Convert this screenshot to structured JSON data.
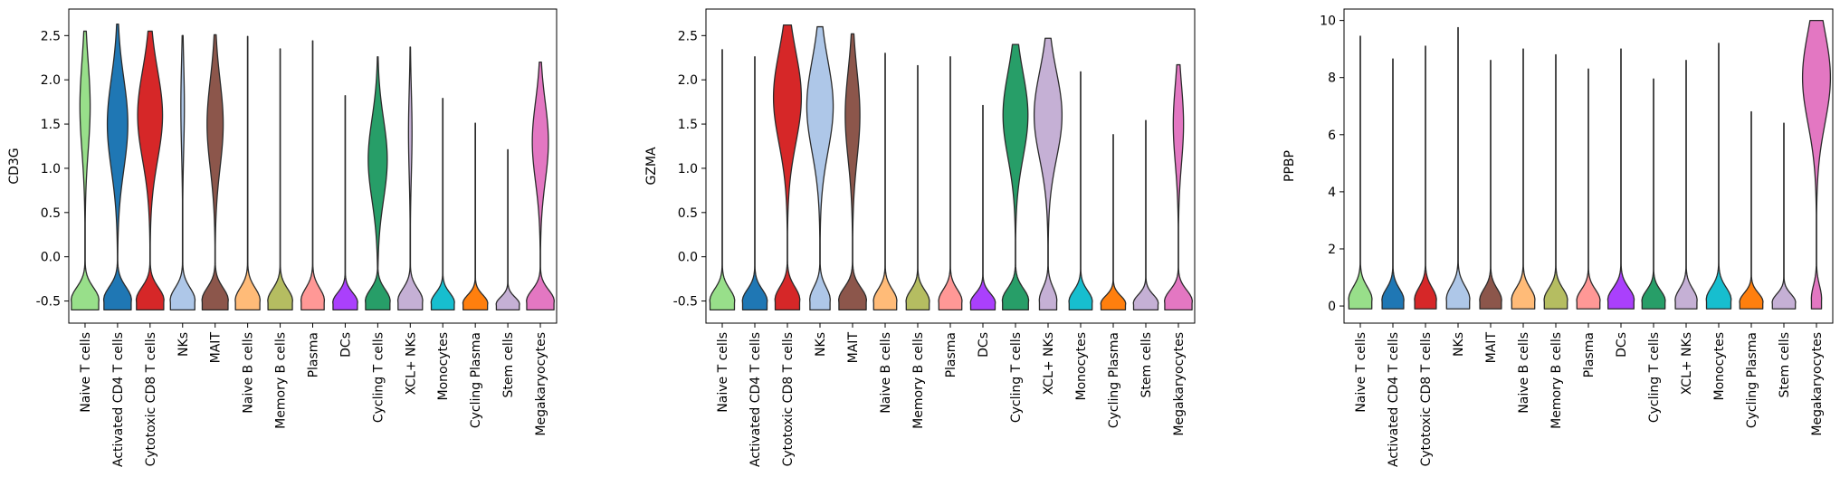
{
  "chart_data": [
    {
      "type": "violin",
      "ylabel": "CD3G",
      "ylim": [
        -0.75,
        2.8
      ],
      "yticks": [
        "-0.5",
        "0.0",
        "0.5",
        "1.0",
        "1.5",
        "2.0",
        "2.5"
      ],
      "ytick_values": [
        -0.5,
        0.0,
        0.5,
        1.0,
        1.5,
        2.0,
        2.5
      ],
      "categories": [
        "Naive T cells",
        "Activated CD4 T cells",
        "Cytotoxic CD8 T cells",
        "NKs",
        "MAIT",
        "Naive B cells",
        "Memory B cells",
        "Plasma",
        "DCs",
        "Cycling T cells",
        "XCL+ NKs",
        "Monocytes",
        "Cycling Plasma",
        "Stem cells",
        "Megakaryocytes"
      ],
      "min": [
        -0.6,
        -0.6,
        -0.6,
        -0.6,
        -0.6,
        -0.6,
        -0.6,
        -0.6,
        -0.6,
        -0.6,
        -0.6,
        -0.6,
        -0.6,
        -0.6,
        -0.6
      ],
      "max": [
        2.55,
        2.63,
        2.55,
        2.5,
        2.51,
        2.49,
        2.35,
        2.44,
        1.82,
        2.26,
        2.37,
        1.79,
        1.51,
        1.21,
        2.2
      ],
      "upper_mode": [
        1.7,
        1.5,
        1.6,
        1.7,
        1.5,
        null,
        null,
        null,
        null,
        1.1,
        1.4,
        null,
        null,
        null,
        1.3
      ],
      "upper_width": [
        0.35,
        0.7,
        0.85,
        0.12,
        0.55,
        0,
        0,
        0,
        0,
        0.65,
        0.12,
        0,
        0,
        0,
        0.55
      ],
      "lower_width": [
        0.95,
        0.95,
        0.95,
        0.85,
        0.9,
        0.85,
        0.85,
        0.8,
        0.85,
        0.85,
        0.85,
        0.8,
        0.85,
        0.8,
        0.95
      ]
    },
    {
      "type": "violin",
      "ylabel": "GZMA",
      "ylim": [
        -0.75,
        2.8
      ],
      "yticks": [
        "-0.5",
        "0.0",
        "0.5",
        "1.0",
        "1.5",
        "2.0",
        "2.5"
      ],
      "ytick_values": [
        -0.5,
        0.0,
        0.5,
        1.0,
        1.5,
        2.0,
        2.5
      ],
      "categories": [
        "Naive T cells",
        "Activated CD4 T cells",
        "Cytotoxic CD8 T cells",
        "NKs",
        "MAIT",
        "Naive B cells",
        "Memory B cells",
        "Plasma",
        "DCs",
        "Cycling T cells",
        "XCL+ NKs",
        "Monocytes",
        "Cycling Plasma",
        "Stem cells",
        "Megakaryocytes"
      ],
      "min": [
        -0.6,
        -0.6,
        -0.6,
        -0.6,
        -0.6,
        -0.6,
        -0.6,
        -0.6,
        -0.6,
        -0.6,
        -0.6,
        -0.6,
        -0.6,
        -0.6,
        -0.6
      ],
      "max": [
        2.34,
        2.26,
        2.62,
        2.6,
        2.52,
        2.3,
        2.16,
        2.26,
        1.71,
        2.4,
        2.47,
        2.09,
        1.38,
        1.54,
        2.17
      ],
      "upper_mode": [
        null,
        null,
        1.8,
        1.7,
        1.6,
        null,
        null,
        null,
        null,
        1.6,
        1.6,
        null,
        null,
        null,
        1.5
      ],
      "upper_width": [
        0,
        0,
        0.95,
        0.9,
        0.5,
        0,
        0,
        0,
        0,
        0.85,
        0.95,
        0,
        0,
        0,
        0.35
      ],
      "lower_width": [
        0.85,
        0.85,
        0.85,
        0.7,
        0.95,
        0.8,
        0.8,
        0.8,
        0.85,
        0.9,
        0.6,
        0.8,
        0.85,
        0.85,
        0.95
      ]
    },
    {
      "type": "violin",
      "ylabel": "PPBP",
      "ylim": [
        -0.6,
        10.4
      ],
      "yticks": [
        "0",
        "2",
        "4",
        "6",
        "8",
        "10"
      ],
      "ytick_values": [
        0,
        2,
        4,
        6,
        8,
        10
      ],
      "categories": [
        "Naive T cells",
        "Activated CD4 T cells",
        "Cytotoxic CD8 T cells",
        "NKs",
        "MAIT",
        "Naive B cells",
        "Memory B cells",
        "Plasma",
        "DCs",
        "Cycling T cells",
        "XCL+ NKs",
        "Monocytes",
        "Cycling Plasma",
        "Stem cells",
        "Megakaryocytes"
      ],
      "min": [
        -0.1,
        -0.1,
        -0.1,
        -0.1,
        -0.1,
        -0.1,
        -0.1,
        -0.1,
        -0.1,
        -0.1,
        -0.1,
        -0.1,
        -0.1,
        -0.1,
        -0.1
      ],
      "max": [
        9.45,
        8.65,
        9.1,
        9.75,
        8.6,
        9.0,
        8.8,
        8.3,
        9.0,
        7.95,
        8.6,
        9.2,
        6.8,
        6.4,
        10.0
      ],
      "upper_mode": [
        null,
        null,
        null,
        null,
        null,
        null,
        null,
        null,
        null,
        null,
        null,
        null,
        null,
        null,
        8.0
      ],
      "upper_width": [
        0,
        0,
        0,
        0,
        0,
        0,
        0,
        0,
        0,
        0,
        0,
        0,
        0,
        0,
        0.95
      ],
      "lower_width": [
        0.8,
        0.75,
        0.75,
        0.8,
        0.75,
        0.8,
        0.8,
        0.8,
        0.9,
        0.8,
        0.75,
        0.85,
        0.8,
        0.8,
        0.35
      ]
    }
  ],
  "colors": [
    "#98df8a",
    "#1f77b4",
    "#d62728",
    "#aec7e8",
    "#8c564b",
    "#ffbb78",
    "#b5bd61",
    "#ff9896",
    "#aa40fc",
    "#279e68",
    "#c5b0d5",
    "#17becf",
    "#ff7f0e",
    "#c5b0d5",
    "#e377c2"
  ]
}
